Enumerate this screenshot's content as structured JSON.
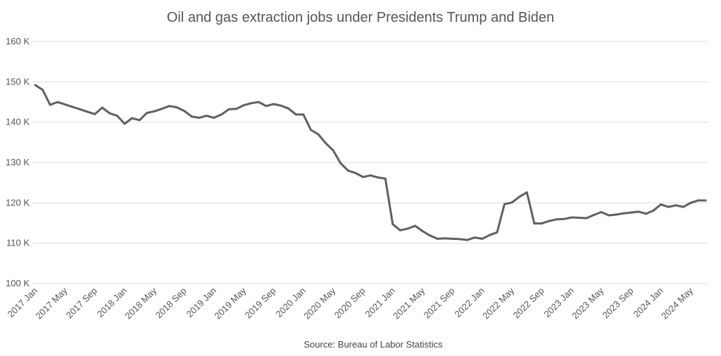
{
  "chart_data": {
    "type": "line",
    "title": "Oil and gas extraction jobs under Presidents Trump and Biden",
    "source": "Source: Bureau of Labor Statistics",
    "xlabel": "",
    "ylabel": "",
    "ylim": [
      100000,
      160000
    ],
    "yticks": [
      100000,
      110000,
      120000,
      130000,
      140000,
      150000,
      160000
    ],
    "ytick_labels": [
      "100 K",
      "110 K",
      "120 K",
      "130 K",
      "140 K",
      "150 K",
      "160 K"
    ],
    "xtick_labels": [
      "2017 Jan",
      "2017 May",
      "2017 Sep",
      "2018 Jan",
      "2018 May",
      "2018 Sep",
      "2019 Jan",
      "2019 May",
      "2019 Sep",
      "2020 Jan",
      "2020 May",
      "2020 Sep",
      "2021 Jan",
      "2021 May",
      "2021 Sep",
      "2022 Jan",
      "2022 May",
      "2022 Sep",
      "2023 Jan",
      "2023 May",
      "2023 Sep",
      "2024 Jan",
      "2024 May"
    ],
    "xtick_every_months": 4,
    "start": "2017 Jan",
    "grid": true,
    "line_color": "#586657",
    "series": [
      {
        "name": "Oil and gas extraction jobs",
        "values": [
          149.2,
          148.0,
          144.3,
          145.0,
          144.4,
          143.8,
          143.2,
          142.6,
          142.0,
          143.6,
          142.2,
          141.6,
          139.6,
          141.0,
          140.5,
          142.3,
          142.7,
          143.3,
          144.0,
          143.7,
          142.8,
          141.4,
          141.1,
          141.6,
          141.1,
          141.9,
          143.2,
          143.3,
          144.2,
          144.7,
          145.0,
          144.0,
          144.5,
          144.1,
          143.4,
          141.9,
          141.9,
          138.1,
          137.0,
          134.8,
          133.0,
          129.8,
          128.0,
          127.4,
          126.4,
          126.8,
          126.3,
          126.0,
          114.7,
          113.2,
          113.6,
          114.3,
          113.0,
          111.9,
          111.1,
          111.2,
          111.1,
          111.0,
          110.8,
          111.4,
          111.1,
          112.0,
          112.7,
          119.7,
          120.1,
          121.5,
          122.6,
          114.9,
          114.9,
          115.5,
          115.9,
          116.0,
          116.4,
          116.3,
          116.2,
          117.0,
          117.7,
          116.9,
          117.1,
          117.4,
          117.6,
          117.8,
          117.3,
          118.1,
          119.6,
          119.0,
          119.4,
          119.0,
          120.0,
          120.6,
          120.6
        ],
        "unit": "thousands"
      }
    ]
  }
}
